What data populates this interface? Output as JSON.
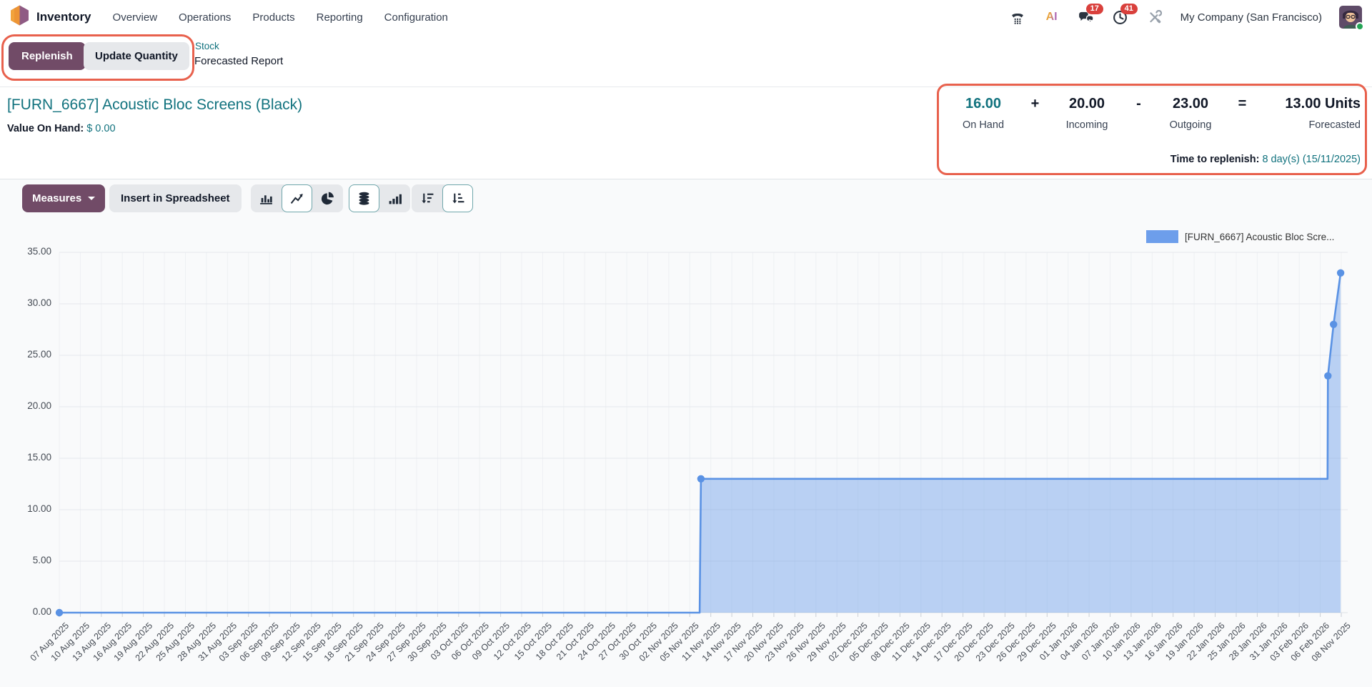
{
  "nav": {
    "app_name": "Inventory",
    "menus": [
      "Overview",
      "Operations",
      "Products",
      "Reporting",
      "Configuration"
    ],
    "ai_label": "AI",
    "badges": {
      "chat": "17",
      "activities": "41"
    },
    "company": "My Company (San Francisco)"
  },
  "actions": {
    "replenish": "Replenish",
    "update_quantity": "Update Quantity"
  },
  "breadcrumb": {
    "parent": "Stock",
    "current": "Forecasted Report"
  },
  "product": {
    "title": "[FURN_6667] Acoustic Bloc Screens (Black)",
    "value_on_hand_label": "Value On Hand:",
    "value_on_hand": "$ 0.00"
  },
  "summary": {
    "on_hand": {
      "value": "16.00",
      "label": "On Hand"
    },
    "plus": "+",
    "incoming": {
      "value": "20.00",
      "label": "Incoming"
    },
    "minus": "-",
    "outgoing": {
      "value": "23.00",
      "label": "Outgoing"
    },
    "equals": "=",
    "forecasted": {
      "value": "13.00 Units",
      "label": "Forecasted"
    },
    "replenish_label": "Time to replenish:",
    "replenish_value": "8 day(s) (15/11/2025)"
  },
  "toolbar": {
    "measures": "Measures",
    "insert_spreadsheet": "Insert in Spreadsheet",
    "chart_types": [
      "bar",
      "line",
      "pie"
    ],
    "active_chart_type": "line",
    "stacked_active": true,
    "order_active": "ascending"
  },
  "legend": {
    "label": "[FURN_6667] Acoustic Bloc Scre..."
  },
  "colors": {
    "primary_purple": "#714B67",
    "teal_link": "#11727e",
    "annotation_red": "#e8614d",
    "badge_red": "#d9403c",
    "line_blue": "#5a92e4",
    "fill_blue": "rgba(106,157,232,0.45)"
  },
  "chart_data": {
    "type": "area",
    "title": "",
    "xlabel": "",
    "ylabel": "",
    "ylim": [
      0,
      35
    ],
    "grid": true,
    "legend_position": "top-right",
    "series_name": "[FURN_6667] Acoustic Bloc Screens (Black)",
    "y_ticks": [
      "35.00",
      "30.00",
      "25.00",
      "20.00",
      "15.00",
      "10.00",
      "5.00",
      "0.00"
    ],
    "x_labels": [
      "07 Aug 2025",
      "10 Aug 2025",
      "13 Aug 2025",
      "16 Aug 2025",
      "19 Aug 2025",
      "22 Aug 2025",
      "25 Aug 2025",
      "28 Aug 2025",
      "31 Aug 2025",
      "03 Sep 2025",
      "06 Sep 2025",
      "09 Sep 2025",
      "12 Sep 2025",
      "15 Sep 2025",
      "18 Sep 2025",
      "21 Sep 2025",
      "24 Sep 2025",
      "27 Sep 2025",
      "30 Sep 2025",
      "03 Oct 2025",
      "06 Oct 2025",
      "09 Oct 2025",
      "12 Oct 2025",
      "15 Oct 2025",
      "18 Oct 2025",
      "21 Oct 2025",
      "24 Oct 2025",
      "27 Oct 2025",
      "30 Oct 2025",
      "02 Nov 2025",
      "05 Nov 2025",
      "11 Nov 2025",
      "14 Nov 2025",
      "17 Nov 2025",
      "20 Nov 2025",
      "23 Nov 2025",
      "26 Nov 2025",
      "29 Nov 2025",
      "02 Dec 2025",
      "05 Dec 2025",
      "08 Dec 2025",
      "11 Dec 2025",
      "14 Dec 2025",
      "17 Dec 2025",
      "20 Dec 2025",
      "23 Dec 2025",
      "26 Dec 2025",
      "29 Dec 2025",
      "01 Jan 2026",
      "04 Jan 2026",
      "07 Jan 2026",
      "10 Jan 2026",
      "13 Jan 2026",
      "16 Jan 2026",
      "19 Jan 2026",
      "22 Jan 2026",
      "25 Jan 2026",
      "28 Jan 2026",
      "31 Jan 2026",
      "03 Feb 2026",
      "06 Feb 2026",
      "08 Nov 2025"
    ],
    "points": [
      {
        "f": 0.0,
        "v": 0,
        "dot": true
      },
      {
        "f": 0.4995,
        "v": 0,
        "dot": false
      },
      {
        "f": 0.5005,
        "v": 13,
        "dot": true
      },
      {
        "f": 0.9893,
        "v": 13,
        "dot": false
      },
      {
        "f": 0.9896,
        "v": 23,
        "dot": true
      },
      {
        "f": 0.994,
        "v": 28,
        "dot": true
      },
      {
        "f": 0.9995,
        "v": 33,
        "dot": true
      }
    ],
    "readings": [
      {
        "date": "07 Aug 2025",
        "value": 0.0
      },
      {
        "date": "11 Nov 2025",
        "value": 13.0
      },
      {
        "date": "03 Feb 2026",
        "value": 23.0
      },
      {
        "date": "06 Feb 2026",
        "value": 28.0
      },
      {
        "date": "08 Nov 2025",
        "value": 33.0
      }
    ]
  }
}
